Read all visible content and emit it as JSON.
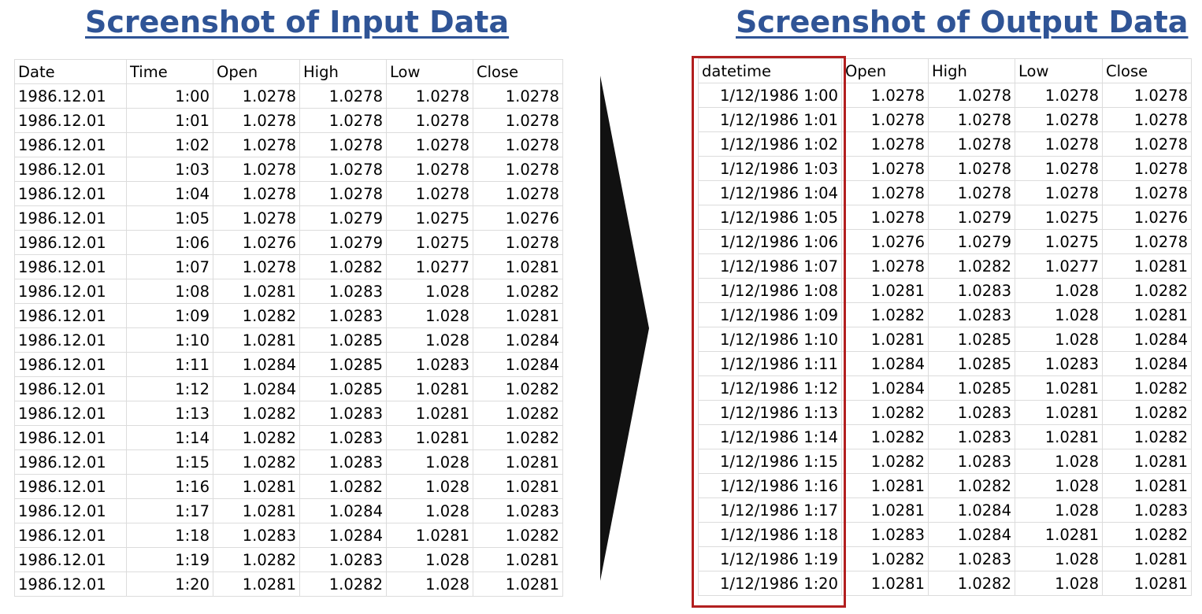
{
  "headings": {
    "input": "Screenshot of Input Data",
    "output": "Screenshot of Output Data"
  },
  "colors": {
    "heading": "#2f5496",
    "highlight_border": "#b21f1f",
    "arrow": "#111111",
    "grid": "#dcdcdc"
  },
  "icons": {
    "arrow": "right-pointing-triangle-icon"
  },
  "input_table": {
    "columns": [
      "Date",
      "Time",
      "Open",
      "High",
      "Low",
      "Close"
    ],
    "rows": [
      [
        "1986.12.01",
        "1:00",
        "1.0278",
        "1.0278",
        "1.0278",
        "1.0278"
      ],
      [
        "1986.12.01",
        "1:01",
        "1.0278",
        "1.0278",
        "1.0278",
        "1.0278"
      ],
      [
        "1986.12.01",
        "1:02",
        "1.0278",
        "1.0278",
        "1.0278",
        "1.0278"
      ],
      [
        "1986.12.01",
        "1:03",
        "1.0278",
        "1.0278",
        "1.0278",
        "1.0278"
      ],
      [
        "1986.12.01",
        "1:04",
        "1.0278",
        "1.0278",
        "1.0278",
        "1.0278"
      ],
      [
        "1986.12.01",
        "1:05",
        "1.0278",
        "1.0279",
        "1.0275",
        "1.0276"
      ],
      [
        "1986.12.01",
        "1:06",
        "1.0276",
        "1.0279",
        "1.0275",
        "1.0278"
      ],
      [
        "1986.12.01",
        "1:07",
        "1.0278",
        "1.0282",
        "1.0277",
        "1.0281"
      ],
      [
        "1986.12.01",
        "1:08",
        "1.0281",
        "1.0283",
        "1.028",
        "1.0282"
      ],
      [
        "1986.12.01",
        "1:09",
        "1.0282",
        "1.0283",
        "1.028",
        "1.0281"
      ],
      [
        "1986.12.01",
        "1:10",
        "1.0281",
        "1.0285",
        "1.028",
        "1.0284"
      ],
      [
        "1986.12.01",
        "1:11",
        "1.0284",
        "1.0285",
        "1.0283",
        "1.0284"
      ],
      [
        "1986.12.01",
        "1:12",
        "1.0284",
        "1.0285",
        "1.0281",
        "1.0282"
      ],
      [
        "1986.12.01",
        "1:13",
        "1.0282",
        "1.0283",
        "1.0281",
        "1.0282"
      ],
      [
        "1986.12.01",
        "1:14",
        "1.0282",
        "1.0283",
        "1.0281",
        "1.0282"
      ],
      [
        "1986.12.01",
        "1:15",
        "1.0282",
        "1.0283",
        "1.028",
        "1.0281"
      ],
      [
        "1986.12.01",
        "1:16",
        "1.0281",
        "1.0282",
        "1.028",
        "1.0281"
      ],
      [
        "1986.12.01",
        "1:17",
        "1.0281",
        "1.0284",
        "1.028",
        "1.0283"
      ],
      [
        "1986.12.01",
        "1:18",
        "1.0283",
        "1.0284",
        "1.0281",
        "1.0282"
      ],
      [
        "1986.12.01",
        "1:19",
        "1.0282",
        "1.0283",
        "1.028",
        "1.0281"
      ],
      [
        "1986.12.01",
        "1:20",
        "1.0281",
        "1.0282",
        "1.028",
        "1.0281"
      ]
    ]
  },
  "output_table": {
    "columns": [
      "datetime",
      "Open",
      "High",
      "Low",
      "Close"
    ],
    "rows": [
      [
        "1/12/1986 1:00",
        "1.0278",
        "1.0278",
        "1.0278",
        "1.0278"
      ],
      [
        "1/12/1986 1:01",
        "1.0278",
        "1.0278",
        "1.0278",
        "1.0278"
      ],
      [
        "1/12/1986 1:02",
        "1.0278",
        "1.0278",
        "1.0278",
        "1.0278"
      ],
      [
        "1/12/1986 1:03",
        "1.0278",
        "1.0278",
        "1.0278",
        "1.0278"
      ],
      [
        "1/12/1986 1:04",
        "1.0278",
        "1.0278",
        "1.0278",
        "1.0278"
      ],
      [
        "1/12/1986 1:05",
        "1.0278",
        "1.0279",
        "1.0275",
        "1.0276"
      ],
      [
        "1/12/1986 1:06",
        "1.0276",
        "1.0279",
        "1.0275",
        "1.0278"
      ],
      [
        "1/12/1986 1:07",
        "1.0278",
        "1.0282",
        "1.0277",
        "1.0281"
      ],
      [
        "1/12/1986 1:08",
        "1.0281",
        "1.0283",
        "1.028",
        "1.0282"
      ],
      [
        "1/12/1986 1:09",
        "1.0282",
        "1.0283",
        "1.028",
        "1.0281"
      ],
      [
        "1/12/1986 1:10",
        "1.0281",
        "1.0285",
        "1.028",
        "1.0284"
      ],
      [
        "1/12/1986 1:11",
        "1.0284",
        "1.0285",
        "1.0283",
        "1.0284"
      ],
      [
        "1/12/1986 1:12",
        "1.0284",
        "1.0285",
        "1.0281",
        "1.0282"
      ],
      [
        "1/12/1986 1:13",
        "1.0282",
        "1.0283",
        "1.0281",
        "1.0282"
      ],
      [
        "1/12/1986 1:14",
        "1.0282",
        "1.0283",
        "1.0281",
        "1.0282"
      ],
      [
        "1/12/1986 1:15",
        "1.0282",
        "1.0283",
        "1.028",
        "1.0281"
      ],
      [
        "1/12/1986 1:16",
        "1.0281",
        "1.0282",
        "1.028",
        "1.0281"
      ],
      [
        "1/12/1986 1:17",
        "1.0281",
        "1.0284",
        "1.028",
        "1.0283"
      ],
      [
        "1/12/1986 1:18",
        "1.0283",
        "1.0284",
        "1.0281",
        "1.0282"
      ],
      [
        "1/12/1986 1:19",
        "1.0282",
        "1.0283",
        "1.028",
        "1.0281"
      ],
      [
        "1/12/1986 1:20",
        "1.0281",
        "1.0282",
        "1.028",
        "1.0281"
      ]
    ]
  }
}
